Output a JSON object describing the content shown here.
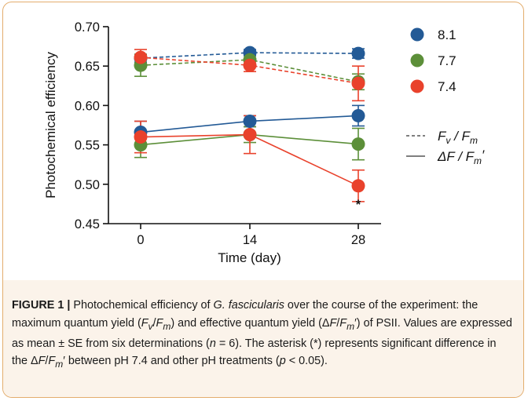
{
  "chart_data": {
    "type": "line",
    "title": "",
    "xlabel": "Time (day)",
    "ylabel": "Photochemical efficiency",
    "x": [
      0,
      14,
      28
    ],
    "x_tick_labels": [
      "0",
      "14",
      "28"
    ],
    "ylim": [
      0.45,
      0.7
    ],
    "y_ticks": [
      0.45,
      0.5,
      0.55,
      0.6,
      0.65,
      0.7
    ],
    "y_tick_labels": [
      "0.45",
      "0.50",
      "0.55",
      "0.60",
      "0.65",
      "0.70"
    ],
    "grid": false,
    "legend_position": "right",
    "legend": {
      "treatments": [
        {
          "label": "8.1",
          "color": "#235a96"
        },
        {
          "label": "7.7",
          "color": "#5c8f39"
        },
        {
          "label": "7.4",
          "color": "#e9422c"
        }
      ],
      "line_styles": [
        {
          "style": "dashed",
          "label_main": "F",
          "label_sub1": "v",
          "label_slash": " / F",
          "label_sub2": "m",
          "label_prime": ""
        },
        {
          "style": "solid",
          "label_main": "ΔF",
          "label_sub1": "",
          "label_slash": " / F",
          "label_sub2": "m",
          "label_prime": "′"
        }
      ]
    },
    "series": [
      {
        "treatment": "8.1",
        "measure": "Fv/Fm",
        "style": "dashed",
        "color": "#235a96",
        "values": [
          0.66,
          0.667,
          0.666
        ],
        "errors": [
          0.005,
          0.004,
          0.006
        ]
      },
      {
        "treatment": "7.7",
        "measure": "Fv/Fm",
        "style": "dashed",
        "color": "#5c8f39",
        "values": [
          0.651,
          0.658,
          0.63
        ],
        "errors": [
          0.014,
          0.008,
          0.01
        ]
      },
      {
        "treatment": "7.4",
        "measure": "Fv/Fm",
        "style": "dashed",
        "color": "#e9422c",
        "values": [
          0.661,
          0.651,
          0.628
        ],
        "errors": [
          0.01,
          0.008,
          0.022
        ]
      },
      {
        "treatment": "8.1",
        "measure": "ΔF/Fm′",
        "style": "solid",
        "color": "#235a96",
        "values": [
          0.566,
          0.58,
          0.587
        ],
        "errors": [
          0.014,
          0.007,
          0.013
        ]
      },
      {
        "treatment": "7.7",
        "measure": "ΔF/Fm′",
        "style": "solid",
        "color": "#5c8f39",
        "values": [
          0.55,
          0.563,
          0.551
        ],
        "errors": [
          0.016,
          0.01,
          0.02
        ]
      },
      {
        "treatment": "7.4",
        "measure": "ΔF/Fm′",
        "style": "solid",
        "color": "#e9422c",
        "values": [
          0.56,
          0.563,
          0.498
        ],
        "errors": [
          0.02,
          0.024,
          0.02
        ]
      }
    ],
    "annotations": [
      {
        "text": "*",
        "x": 28,
        "y": 0.475
      }
    ]
  },
  "caption": {
    "label": "FIGURE 1 |",
    "text_1": " Photochemical efficiency of ",
    "species": "G. fascicularis",
    "text_2": " over the course of the experiment: the maximum quantum yield (",
    "fvfm_F": "F",
    "fvfm_v": "v",
    "fvfm_slash": "/",
    "fvfm_F2": "F",
    "fvfm_m": "m",
    "text_3": ") and effective quantum yield (",
    "df_delta": "Δ",
    "df_F": "F",
    "df_slash": "/",
    "df_F2": "F",
    "df_m": "m",
    "df_prime": "′",
    "text_4": ") of PSII. Values are expressed as mean ± SE from six determinations (",
    "n_italic": "n",
    "text_5": " = 6). The asterisk (*) represents significant difference in the Δ",
    "df2_F": "F",
    "df2_slash": "/",
    "df2_F2": "F",
    "df2_m": "m",
    "df2_prime": "′",
    "text_6": " between pH 7.4 and other pH treatments (",
    "p_italic": "p",
    "text_7": " < 0.05)."
  }
}
